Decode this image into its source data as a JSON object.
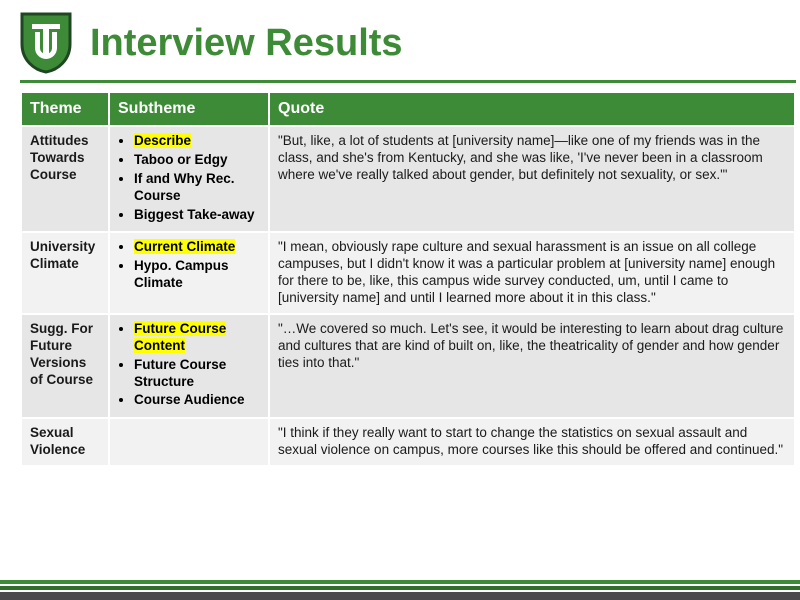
{
  "colors": {
    "brand_green": "#3d8b37",
    "dark_green": "#2f6f2a",
    "header_title": "#3d8b37",
    "table_header_bg": "#3d8b37",
    "rule_green": "#3d8b37",
    "row_odd_bg": "#e6e6e6",
    "row_even_bg": "#f2f2f2",
    "text": "#1a1a1a",
    "highlight": "#ffff00",
    "footer_gray": "#4b4b4b",
    "shield_outline": "#1e4620",
    "shield_fill": "#3d8b37"
  },
  "title": "Interview Results",
  "table": {
    "headers": [
      "Theme",
      "Subtheme",
      "Quote"
    ],
    "rows": [
      {
        "theme": "Attitudes Towards Course",
        "subthemes": [
          {
            "text": "Describe",
            "highlight": true
          },
          {
            "text": "Taboo or Edgy",
            "highlight": false
          },
          {
            "text": "If and Why Rec. Course",
            "highlight": false
          },
          {
            "text": "Biggest Take-away",
            "highlight": false
          }
        ],
        "quote": "\"But, like, a lot of students at [university name]—like one of my friends was in the class, and she's from Kentucky, and she was like, 'I've never been in a classroom where we've really talked about gender, but definitely not sexuality, or sex.'\""
      },
      {
        "theme": "University Climate",
        "subthemes": [
          {
            "text": "Current Climate",
            "highlight": true
          },
          {
            "text": "Hypo. Campus Climate",
            "highlight": false
          }
        ],
        "quote": "\"I mean, obviously rape culture and sexual harassment is an issue on all college campuses, but I didn't know it was a particular problem at [university name] enough for there to be, like, this campus wide survey conducted, um, until I came to [university name] and until I learned more about it in this class.\""
      },
      {
        "theme": "Sugg. For Future Versions of Course",
        "subthemes": [
          {
            "text": "Future Course Content",
            "highlight": true
          },
          {
            "text": "Future Course Structure",
            "highlight": false
          },
          {
            "text": "Course Audience",
            "highlight": false
          }
        ],
        "quote": "\"…We covered so much. Let's see, it would be interesting to learn about drag culture and cultures that are kind of built on, like, the theatricality of gender and how gender ties into that.\""
      },
      {
        "theme": "Sexual Violence",
        "subthemes": [],
        "quote": "\"I think if they really want to start to change the statistics on sexual assault and sexual violence on campus, more courses like this should be offered and continued.\""
      }
    ]
  }
}
